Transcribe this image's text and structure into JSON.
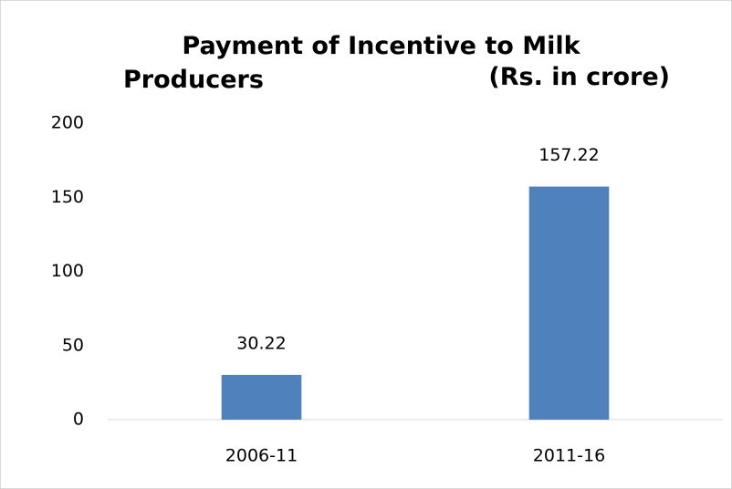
{
  "chart_data": {
    "type": "bar",
    "title": "Payment of Incentive to Milk Producers",
    "unit": "(Rs. in crore)",
    "categories": [
      "2006-11",
      "2011-16"
    ],
    "values": [
      30.22,
      157.22
    ],
    "color": "#4f81bd",
    "ylim": [
      0,
      200
    ],
    "yticks": [
      0,
      50,
      100,
      150,
      200
    ],
    "grid": false,
    "data_labels": true
  }
}
